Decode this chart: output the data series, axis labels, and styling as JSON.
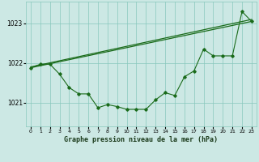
{
  "background_color": "#cce8e4",
  "grid_color": "#88c8bc",
  "line_color": "#1a6b1a",
  "title": "Graphe pression niveau de la mer (hPa)",
  "x_ticks": [
    0,
    1,
    2,
    3,
    4,
    5,
    6,
    7,
    8,
    9,
    10,
    11,
    12,
    13,
    14,
    15,
    16,
    17,
    18,
    19,
    20,
    21,
    22,
    23
  ],
  "y_ticks": [
    1021,
    1022,
    1023
  ],
  "ylim": [
    1020.4,
    1023.55
  ],
  "xlim": [
    -0.5,
    23.5
  ],
  "line1_x": [
    0,
    23
  ],
  "line1_y": [
    1021.9,
    1023.1
  ],
  "line2_x": [
    0,
    23
  ],
  "line2_y": [
    1021.88,
    1023.05
  ],
  "line3_x": [
    0,
    1,
    2,
    3,
    4,
    5,
    6,
    7,
    8,
    9,
    10,
    11,
    12,
    13,
    14,
    15,
    16,
    17,
    18,
    19,
    20,
    21,
    22,
    23
  ],
  "line3_y": [
    1021.88,
    1021.97,
    1021.97,
    1021.72,
    1021.38,
    1021.22,
    1021.22,
    1020.87,
    1020.95,
    1020.9,
    1020.83,
    1020.83,
    1020.83,
    1021.07,
    1021.25,
    1021.18,
    1021.65,
    1021.8,
    1022.35,
    1022.18,
    1022.18,
    1022.18,
    1023.3,
    1023.05
  ]
}
